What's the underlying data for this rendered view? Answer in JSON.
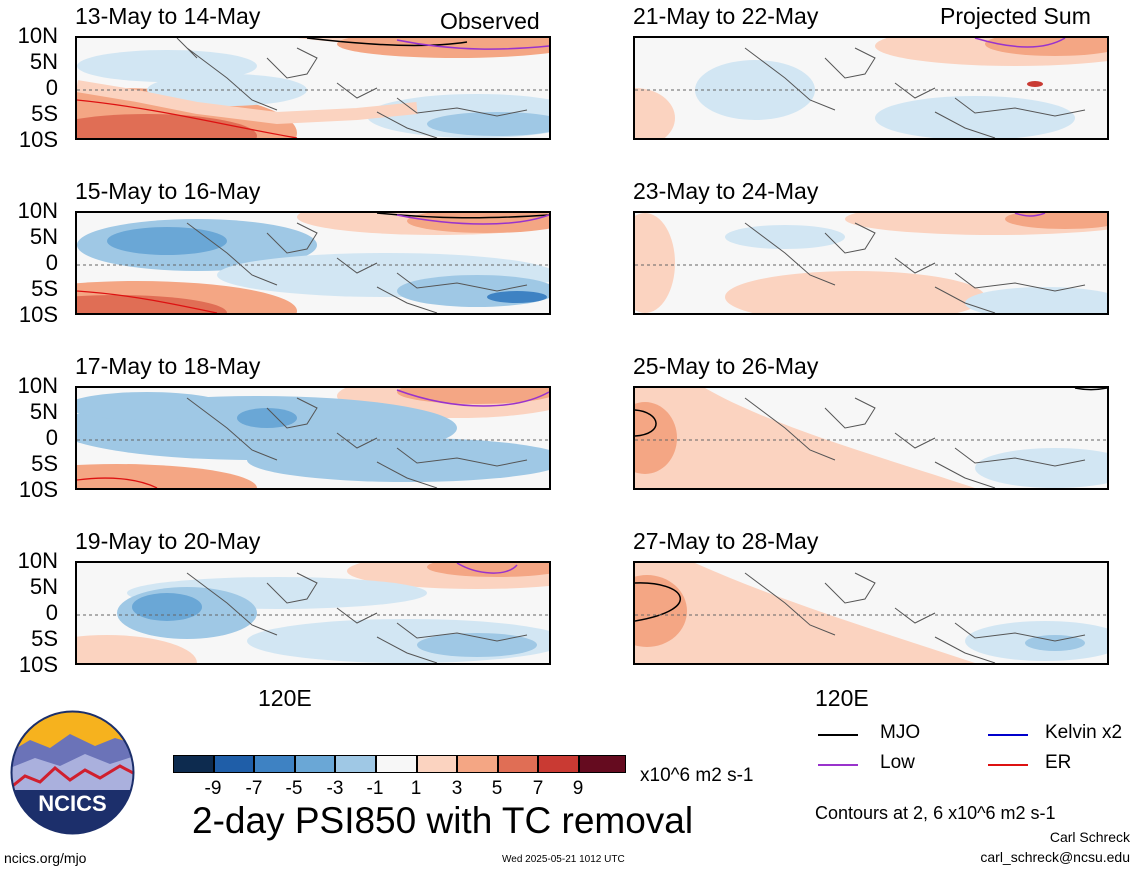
{
  "columns": {
    "left_tag": "Observed",
    "right_tag": "Projected Sum"
  },
  "panels_left": [
    {
      "title": "13-May to 14-May"
    },
    {
      "title": "15-May to 16-May"
    },
    {
      "title": "17-May to 18-May"
    },
    {
      "title": "19-May to 20-May"
    }
  ],
  "panels_right": [
    {
      "title": "21-May to 22-May"
    },
    {
      "title": "23-May to 24-May"
    },
    {
      "title": "25-May to 26-May"
    },
    {
      "title": "27-May to 28-May"
    }
  ],
  "lat_labels": [
    "10N",
    "5N",
    "0",
    "5S",
    "10S"
  ],
  "lon_label": "120E",
  "colorbar": {
    "ticks": [
      "-9",
      "-7",
      "-5",
      "-3",
      "-1",
      "1",
      "3",
      "5",
      "7",
      "9"
    ],
    "colors": [
      "#0d2b4f",
      "#1f5ea8",
      "#3e82c3",
      "#6aa7d6",
      "#9fc8e5",
      "#d2e6f3",
      "#f7f7f7",
      "#fbd3c0",
      "#f4a684",
      "#e06e55",
      "#c93a33",
      "#9b1b2b",
      "#650b1f"
    ],
    "units": "x10^6 m2 s-1"
  },
  "main_title": "2-day PSI850 with TC removal",
  "legend": [
    {
      "label": "MJO",
      "color": "#000000"
    },
    {
      "label": "Kelvin x2",
      "color": "#0000cc"
    },
    {
      "label": "Low",
      "color": "#9933cc"
    },
    {
      "label": "ER",
      "color": "#dd1111"
    }
  ],
  "contour_note": "Contours at 2, 6 x10^6 m2 s-1",
  "author": "Carl Schreck",
  "email": "carl_schreck@ncsu.edu",
  "footer_url": "ncics.org/mjo",
  "timestamp": "Wed 2025-05-21 1012 UTC",
  "logo_text": "NCICS"
}
